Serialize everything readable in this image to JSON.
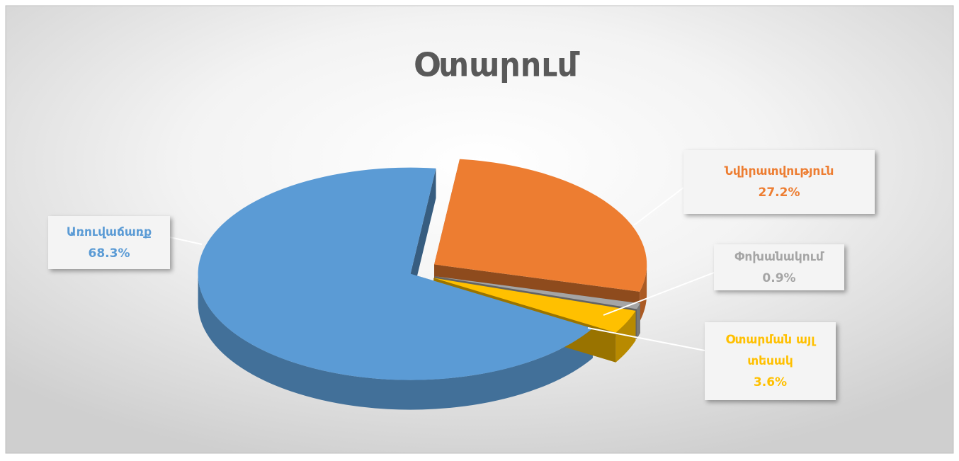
{
  "chart_data": {
    "type": "pie3d",
    "title": "Օտարում",
    "categories": [
      "Առուվաճառք",
      "Նվիրատվություն",
      "Փոխանակում",
      "Օտարման այլ տեսակ"
    ],
    "values": [
      68.3,
      27.2,
      0.9,
      3.6
    ],
    "value_labels": [
      "68.3%",
      "27.2%",
      "0.9%",
      "3.6%"
    ],
    "colors": [
      "#5b9bd5",
      "#ed7d31",
      "#a5a5a5",
      "#ffc000"
    ]
  }
}
